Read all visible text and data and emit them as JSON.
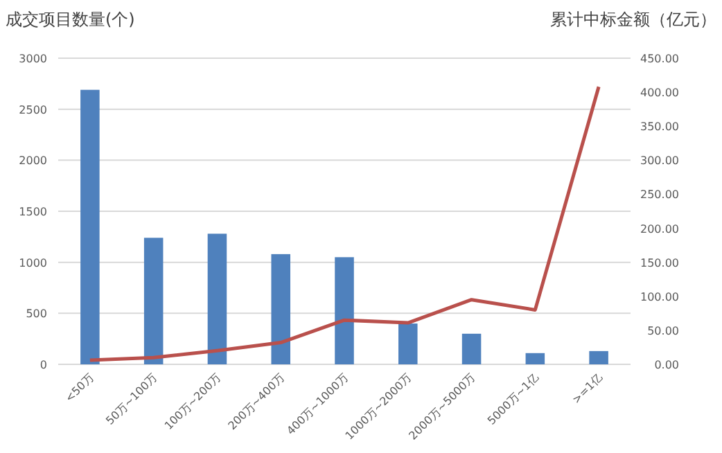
{
  "chart_data": {
    "type": "bar",
    "ylabel": "成交项目数量(个)",
    "y2label": "累计中标金额（亿元）",
    "categories": [
      "<50万",
      "50万~100万",
      "100万~200万",
      "200万~400万",
      "400万~1000万",
      "1000万~2000万",
      "2000万~5000万",
      "5000万~1亿",
      ">=1亿"
    ],
    "series": [
      {
        "color": "#4f81bd",
        "values": [
          2690,
          1240,
          1280,
          1080,
          1050,
          400,
          300,
          110,
          130
        ]
      },
      {
        "type": "line",
        "axis": "y2",
        "color": "#b9504c",
        "values": [
          6,
          10,
          20,
          32,
          65,
          61,
          95,
          80,
          408
        ]
      }
    ],
    "ylim": [
      0,
      3000
    ],
    "yticks": [
      0,
      500,
      1000,
      1500,
      2000,
      2500,
      3000
    ],
    "y2lim": [
      0,
      450
    ],
    "y2ticks": [
      {
        "value": 0,
        "label": "0.00"
      },
      {
        "value": 50,
        "label": "50.00"
      },
      {
        "value": 100,
        "label": "100.00"
      },
      {
        "value": 150,
        "label": "150.00"
      },
      {
        "value": 200,
        "label": "200.00"
      },
      {
        "value": 250,
        "label": "250.00"
      },
      {
        "value": 300,
        "label": "300.00"
      },
      {
        "value": 350,
        "label": "350.00"
      },
      {
        "value": 400,
        "label": "400.00"
      },
      {
        "value": 450,
        "label": "450.00"
      }
    ],
    "grid": "y"
  }
}
